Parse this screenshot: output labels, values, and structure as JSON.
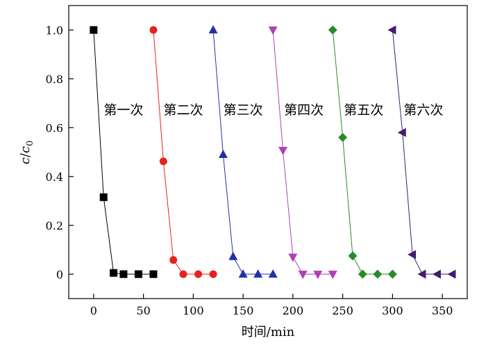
{
  "chart_data": {
    "type": "line",
    "xlabel": "时间/min",
    "ylabel_main": "c",
    "ylabel_div": "/",
    "ylabel_sub_base": "c",
    "ylabel_sub_index": "0",
    "xlim": [
      -25,
      375
    ],
    "ylim": [
      -0.1,
      1.1
    ],
    "xticks": [
      0,
      50,
      100,
      150,
      200,
      250,
      300,
      350
    ],
    "xtick_labels": [
      "0",
      "50",
      "100",
      "150",
      "200",
      "250",
      "300",
      "350"
    ],
    "yticks": [
      0.0,
      0.2,
      0.4,
      0.6,
      0.8,
      1.0
    ],
    "ytick_labels": [
      "0",
      "0.2",
      "0.4",
      "0.6",
      "0.8",
      "1.0"
    ],
    "grid": false,
    "series": [
      {
        "label": "第一次",
        "color": "#000000",
        "marker": "square",
        "x": [
          0,
          10,
          20,
          30,
          45,
          60
        ],
        "y": [
          1.0,
          0.315,
          0.005,
          0.0,
          0.0,
          0.0
        ],
        "label_x": 30,
        "label_y": 0.655
      },
      {
        "label": "第二次",
        "color": "#e8211d",
        "marker": "circle",
        "x": [
          60,
          70,
          80,
          90,
          105,
          120
        ],
        "y": [
          1.0,
          0.462,
          0.058,
          0.0,
          0.0,
          0.0
        ],
        "label_x": 90,
        "label_y": 0.655
      },
      {
        "label": "第三次",
        "color": "#2331a6",
        "marker": "triangle-up",
        "x": [
          120,
          130,
          140,
          150,
          165,
          180
        ],
        "y": [
          1.0,
          0.49,
          0.072,
          0.0,
          0.0,
          0.0
        ],
        "label_x": 150,
        "label_y": 0.655
      },
      {
        "label": "第四次",
        "color": "#b03fb8",
        "marker": "triangle-down",
        "x": [
          180,
          190,
          200,
          210,
          225,
          240
        ],
        "y": [
          1.0,
          0.507,
          0.07,
          0.0,
          0.0,
          0.0
        ],
        "label_x": 211,
        "label_y": 0.655
      },
      {
        "label": "第五次",
        "color": "#2a8a2a",
        "marker": "diamond",
        "x": [
          240,
          250,
          260,
          270,
          285,
          300
        ],
        "y": [
          1.0,
          0.56,
          0.075,
          0.0,
          0.0,
          0.0
        ],
        "label_x": 271,
        "label_y": 0.655
      },
      {
        "label": "第六次",
        "color": "#3f1c6e",
        "marker": "triangle-left",
        "x": [
          300,
          310,
          320,
          330,
          345,
          360
        ],
        "y": [
          1.0,
          0.58,
          0.08,
          0.0,
          0.0,
          0.0
        ],
        "label_x": 331,
        "label_y": 0.655
      }
    ]
  }
}
